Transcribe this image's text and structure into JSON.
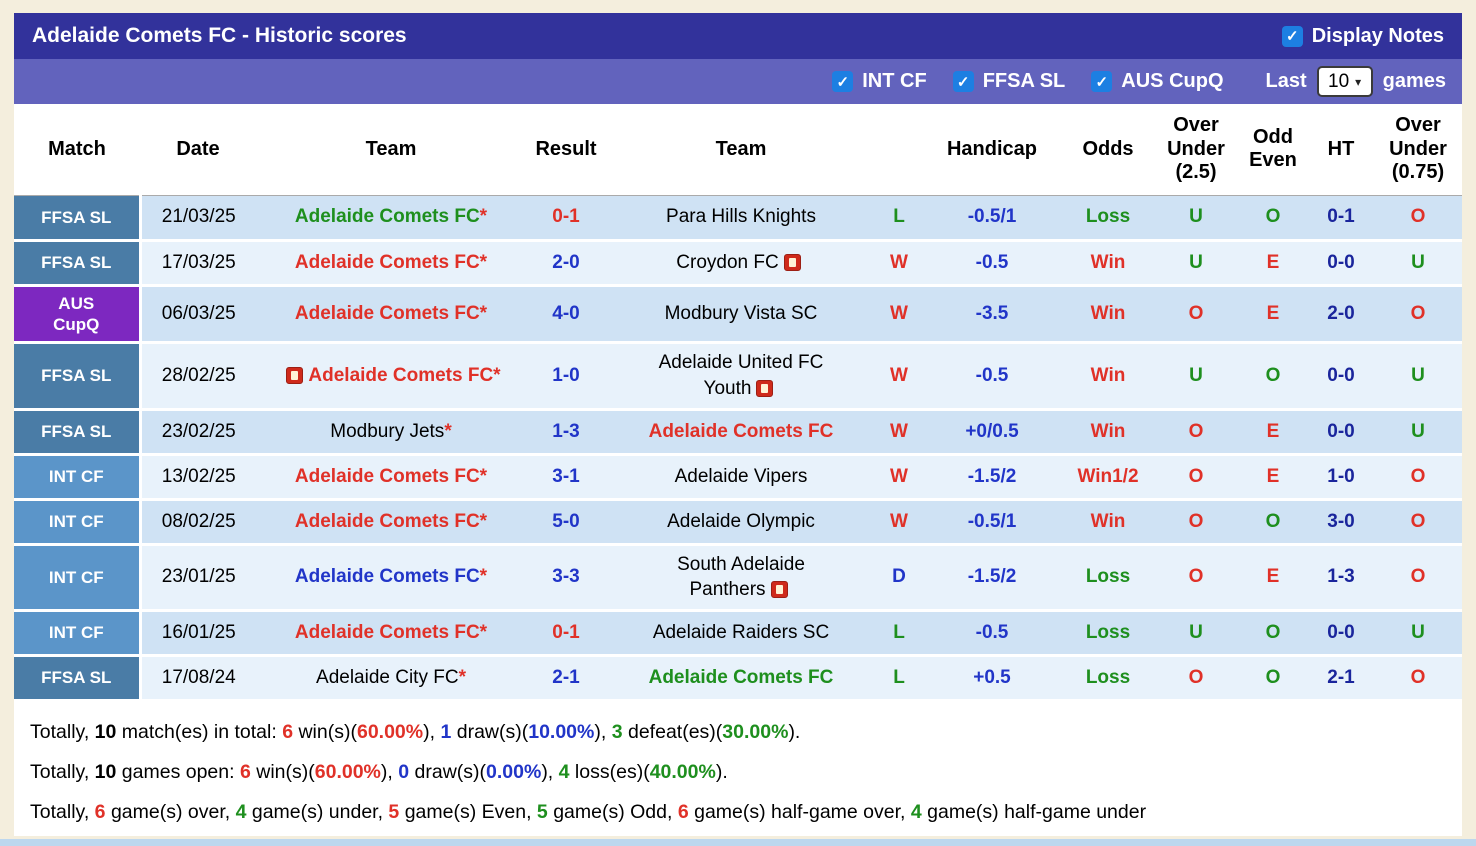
{
  "colors": {
    "red": "#e03128",
    "green": "#1e8f1e",
    "blue": "#2135c8",
    "navy": "#1a259c",
    "black": "#000000",
    "header_bg": "#32329b",
    "filter_bg": "#6263bd",
    "checkbox_blue": "#1d7fe2",
    "row_dark": "#cfe2f4",
    "row_light": "#e8f2fb",
    "badge_ffsa_sl": "#4a7ca6",
    "badge_int_cf": "#5b95c9",
    "badge_aus_cupq": "#7d28c0"
  },
  "header": {
    "title": "Adelaide Comets FC - Historic scores",
    "display_notes_label": "Display Notes"
  },
  "filters": {
    "competitions": [
      {
        "label": "INT CF",
        "checked": true
      },
      {
        "label": "FFSA SL",
        "checked": true
      },
      {
        "label": "AUS CupQ",
        "checked": true
      }
    ],
    "last_label": "Last",
    "selected_count": "10",
    "games_label": "games"
  },
  "icons": {
    "check": "✓",
    "chevron": "▾"
  },
  "table": {
    "headers": [
      "Match",
      "Date",
      "Team",
      "Result",
      "Team",
      "",
      "Handicap",
      "Odds",
      "Over\nUnder\n(2.5)",
      "Odd\nEven",
      "HT",
      "Over\nUnder\n(0.75)"
    ],
    "rows": [
      {
        "comp": "FFSA SL",
        "comp_bg": "#4a7ca6",
        "date": "21/03/25",
        "home": {
          "name": "Adelaide Comets FC",
          "star": true,
          "color": "green",
          "icon": false
        },
        "result": {
          "text": "0-1",
          "color": "red"
        },
        "away": {
          "line1": "Para Hills Knights",
          "line2": null,
          "icon": false,
          "color": "black"
        },
        "wdl": {
          "t": "L",
          "c": "green"
        },
        "handicap": "-0.5/1",
        "odds": {
          "t": "Loss",
          "c": "green"
        },
        "ou25": {
          "t": "U",
          "c": "green"
        },
        "oe": {
          "t": "O",
          "c": "green"
        },
        "ht": "0-1",
        "ou075": {
          "t": "O",
          "c": "red"
        }
      },
      {
        "comp": "FFSA SL",
        "comp_bg": "#4a7ca6",
        "date": "17/03/25",
        "home": {
          "name": "Adelaide Comets FC",
          "star": true,
          "color": "red",
          "icon": false
        },
        "result": {
          "text": "2-0",
          "color": "blue"
        },
        "away": {
          "line1": "Croydon FC",
          "line2": null,
          "icon": true,
          "color": "black"
        },
        "wdl": {
          "t": "W",
          "c": "red"
        },
        "handicap": "-0.5",
        "odds": {
          "t": "Win",
          "c": "red"
        },
        "ou25": {
          "t": "U",
          "c": "green"
        },
        "oe": {
          "t": "E",
          "c": "red"
        },
        "ht": "0-0",
        "ou075": {
          "t": "U",
          "c": "green"
        }
      },
      {
        "comp": "AUS\nCupQ",
        "comp_bg": "#7d28c0",
        "date": "06/03/25",
        "home": {
          "name": "Adelaide Comets FC",
          "star": true,
          "color": "red",
          "icon": false
        },
        "result": {
          "text": "4-0",
          "color": "blue"
        },
        "away": {
          "line1": "Modbury Vista SC",
          "line2": null,
          "icon": false,
          "color": "black"
        },
        "wdl": {
          "t": "W",
          "c": "red"
        },
        "handicap": "-3.5",
        "odds": {
          "t": "Win",
          "c": "red"
        },
        "ou25": {
          "t": "O",
          "c": "red"
        },
        "oe": {
          "t": "E",
          "c": "red"
        },
        "ht": "2-0",
        "ou075": {
          "t": "O",
          "c": "red"
        }
      },
      {
        "comp": "FFSA SL",
        "comp_bg": "#4a7ca6",
        "date": "28/02/25",
        "home": {
          "name": "Adelaide Comets FC",
          "star": true,
          "color": "red",
          "icon": true
        },
        "result": {
          "text": "1-0",
          "color": "blue"
        },
        "away": {
          "line1": "Adelaide United FC",
          "line2": "Youth",
          "icon": true,
          "color": "black"
        },
        "wdl": {
          "t": "W",
          "c": "red"
        },
        "handicap": "-0.5",
        "odds": {
          "t": "Win",
          "c": "red"
        },
        "ou25": {
          "t": "U",
          "c": "green"
        },
        "oe": {
          "t": "O",
          "c": "green"
        },
        "ht": "0-0",
        "ou075": {
          "t": "U",
          "c": "green"
        }
      },
      {
        "comp": "FFSA SL",
        "comp_bg": "#4a7ca6",
        "date": "23/02/25",
        "home": {
          "name": "Modbury Jets",
          "star": true,
          "color": "black",
          "icon": false
        },
        "result": {
          "text": "1-3",
          "color": "blue"
        },
        "away": {
          "line1": "Adelaide Comets FC",
          "line2": null,
          "icon": false,
          "color": "red"
        },
        "wdl": {
          "t": "W",
          "c": "red"
        },
        "handicap": "+0/0.5",
        "odds": {
          "t": "Win",
          "c": "red"
        },
        "ou25": {
          "t": "O",
          "c": "red"
        },
        "oe": {
          "t": "E",
          "c": "red"
        },
        "ht": "0-0",
        "ou075": {
          "t": "U",
          "c": "green"
        }
      },
      {
        "comp": "INT CF",
        "comp_bg": "#5b95c9",
        "date": "13/02/25",
        "home": {
          "name": "Adelaide Comets FC",
          "star": true,
          "color": "red",
          "icon": false
        },
        "result": {
          "text": "3-1",
          "color": "blue"
        },
        "away": {
          "line1": "Adelaide Vipers",
          "line2": null,
          "icon": false,
          "color": "black"
        },
        "wdl": {
          "t": "W",
          "c": "red"
        },
        "handicap": "-1.5/2",
        "odds": {
          "t": "Win1/2",
          "c": "red"
        },
        "ou25": {
          "t": "O",
          "c": "red"
        },
        "oe": {
          "t": "E",
          "c": "red"
        },
        "ht": "1-0",
        "ou075": {
          "t": "O",
          "c": "red"
        }
      },
      {
        "comp": "INT CF",
        "comp_bg": "#5b95c9",
        "date": "08/02/25",
        "home": {
          "name": "Adelaide Comets FC",
          "star": true,
          "color": "red",
          "icon": false
        },
        "result": {
          "text": "5-0",
          "color": "blue"
        },
        "away": {
          "line1": "Adelaide Olympic",
          "line2": null,
          "icon": false,
          "color": "black"
        },
        "wdl": {
          "t": "W",
          "c": "red"
        },
        "handicap": "-0.5/1",
        "odds": {
          "t": "Win",
          "c": "red"
        },
        "ou25": {
          "t": "O",
          "c": "red"
        },
        "oe": {
          "t": "O",
          "c": "green"
        },
        "ht": "3-0",
        "ou075": {
          "t": "O",
          "c": "red"
        }
      },
      {
        "comp": "INT CF",
        "comp_bg": "#5b95c9",
        "date": "23/01/25",
        "home": {
          "name": "Adelaide Comets FC",
          "star": true,
          "color": "blue",
          "icon": false
        },
        "result": {
          "text": "3-3",
          "color": "blue"
        },
        "away": {
          "line1": "South Adelaide",
          "line2": "Panthers",
          "icon": true,
          "color": "black"
        },
        "wdl": {
          "t": "D",
          "c": "blue"
        },
        "handicap": "-1.5/2",
        "odds": {
          "t": "Loss",
          "c": "green"
        },
        "ou25": {
          "t": "O",
          "c": "red"
        },
        "oe": {
          "t": "E",
          "c": "red"
        },
        "ht": "1-3",
        "ou075": {
          "t": "O",
          "c": "red"
        }
      },
      {
        "comp": "INT CF",
        "comp_bg": "#5b95c9",
        "date": "16/01/25",
        "home": {
          "name": "Adelaide Comets FC",
          "star": true,
          "color": "red",
          "icon": false
        },
        "result": {
          "text": "0-1",
          "color": "red"
        },
        "away": {
          "line1": "Adelaide Raiders SC",
          "line2": null,
          "icon": false,
          "color": "black"
        },
        "wdl": {
          "t": "L",
          "c": "green"
        },
        "handicap": "-0.5",
        "odds": {
          "t": "Loss",
          "c": "green"
        },
        "ou25": {
          "t": "U",
          "c": "green"
        },
        "oe": {
          "t": "O",
          "c": "green"
        },
        "ht": "0-0",
        "ou075": {
          "t": "U",
          "c": "green"
        }
      },
      {
        "comp": "FFSA SL",
        "comp_bg": "#4a7ca6",
        "date": "17/08/24",
        "home": {
          "name": "Adelaide City FC",
          "star": true,
          "color": "black",
          "icon": false
        },
        "result": {
          "text": "2-1",
          "color": "blue"
        },
        "away": {
          "line1": "Adelaide Comets FC",
          "line2": null,
          "icon": false,
          "color": "green"
        },
        "wdl": {
          "t": "L",
          "c": "green"
        },
        "handicap": "+0.5",
        "odds": {
          "t": "Loss",
          "c": "green"
        },
        "ou25": {
          "t": "O",
          "c": "red"
        },
        "oe": {
          "t": "O",
          "c": "green"
        },
        "ht": "2-1",
        "ou075": {
          "t": "O",
          "c": "red"
        }
      }
    ]
  },
  "summary": {
    "lines": [
      {
        "segments": [
          {
            "t": "Totally, ",
            "c": "black",
            "b": false
          },
          {
            "t": "10",
            "c": "black",
            "b": true
          },
          {
            "t": " match(es) in total: ",
            "c": "black",
            "b": false
          },
          {
            "t": "6",
            "c": "red",
            "b": true
          },
          {
            "t": " win(s)(",
            "c": "black",
            "b": false
          },
          {
            "t": "60.00%",
            "c": "red",
            "b": true
          },
          {
            "t": "), ",
            "c": "black",
            "b": false
          },
          {
            "t": "1",
            "c": "blue",
            "b": true
          },
          {
            "t": " draw(s)(",
            "c": "black",
            "b": false
          },
          {
            "t": "10.00%",
            "c": "blue",
            "b": true
          },
          {
            "t": "), ",
            "c": "black",
            "b": false
          },
          {
            "t": "3",
            "c": "green",
            "b": true
          },
          {
            "t": " defeat(es)(",
            "c": "black",
            "b": false
          },
          {
            "t": "30.00%",
            "c": "green",
            "b": true
          },
          {
            "t": ").",
            "c": "black",
            "b": false
          }
        ]
      },
      {
        "segments": [
          {
            "t": "Totally, ",
            "c": "black",
            "b": false
          },
          {
            "t": "10",
            "c": "black",
            "b": true
          },
          {
            "t": " games open: ",
            "c": "black",
            "b": false
          },
          {
            "t": "6",
            "c": "red",
            "b": true
          },
          {
            "t": " win(s)(",
            "c": "black",
            "b": false
          },
          {
            "t": "60.00%",
            "c": "red",
            "b": true
          },
          {
            "t": "), ",
            "c": "black",
            "b": false
          },
          {
            "t": "0",
            "c": "blue",
            "b": true
          },
          {
            "t": " draw(s)(",
            "c": "black",
            "b": false
          },
          {
            "t": "0.00%",
            "c": "blue",
            "b": true
          },
          {
            "t": "), ",
            "c": "black",
            "b": false
          },
          {
            "t": "4",
            "c": "green",
            "b": true
          },
          {
            "t": " loss(es)(",
            "c": "black",
            "b": false
          },
          {
            "t": "40.00%",
            "c": "green",
            "b": true
          },
          {
            "t": ").",
            "c": "black",
            "b": false
          }
        ]
      },
      {
        "segments": [
          {
            "t": "Totally, ",
            "c": "black",
            "b": false
          },
          {
            "t": "6",
            "c": "red",
            "b": true
          },
          {
            "t": " game(s) over, ",
            "c": "black",
            "b": false
          },
          {
            "t": "4",
            "c": "green",
            "b": true
          },
          {
            "t": " game(s) under, ",
            "c": "black",
            "b": false
          },
          {
            "t": "5",
            "c": "red",
            "b": true
          },
          {
            "t": " game(s) Even, ",
            "c": "black",
            "b": false
          },
          {
            "t": "5",
            "c": "green",
            "b": true
          },
          {
            "t": " game(s) Odd, ",
            "c": "black",
            "b": false
          },
          {
            "t": "6",
            "c": "red",
            "b": true
          },
          {
            "t": " game(s) half-game over, ",
            "c": "black",
            "b": false
          },
          {
            "t": "4",
            "c": "green",
            "b": true
          },
          {
            "t": " game(s) half-game under",
            "c": "black",
            "b": false
          }
        ]
      }
    ]
  }
}
